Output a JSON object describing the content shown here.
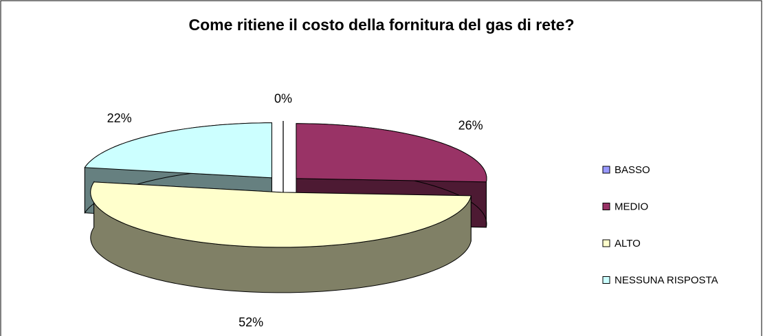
{
  "chart_data": {
    "type": "pie",
    "title": "Come ritiene il costo della fornitura del gas di rete?",
    "categories": [
      "BASSO",
      "MEDIO",
      "ALTO",
      "NESSUNA RISPOSTA"
    ],
    "values": [
      0,
      26,
      52,
      22
    ],
    "value_labels": [
      "0%",
      "26%",
      "52%",
      "22%"
    ],
    "colors": [
      "#9999ff",
      "#993366",
      "#ffffcc",
      "#ccffff"
    ],
    "legend": "right"
  }
}
